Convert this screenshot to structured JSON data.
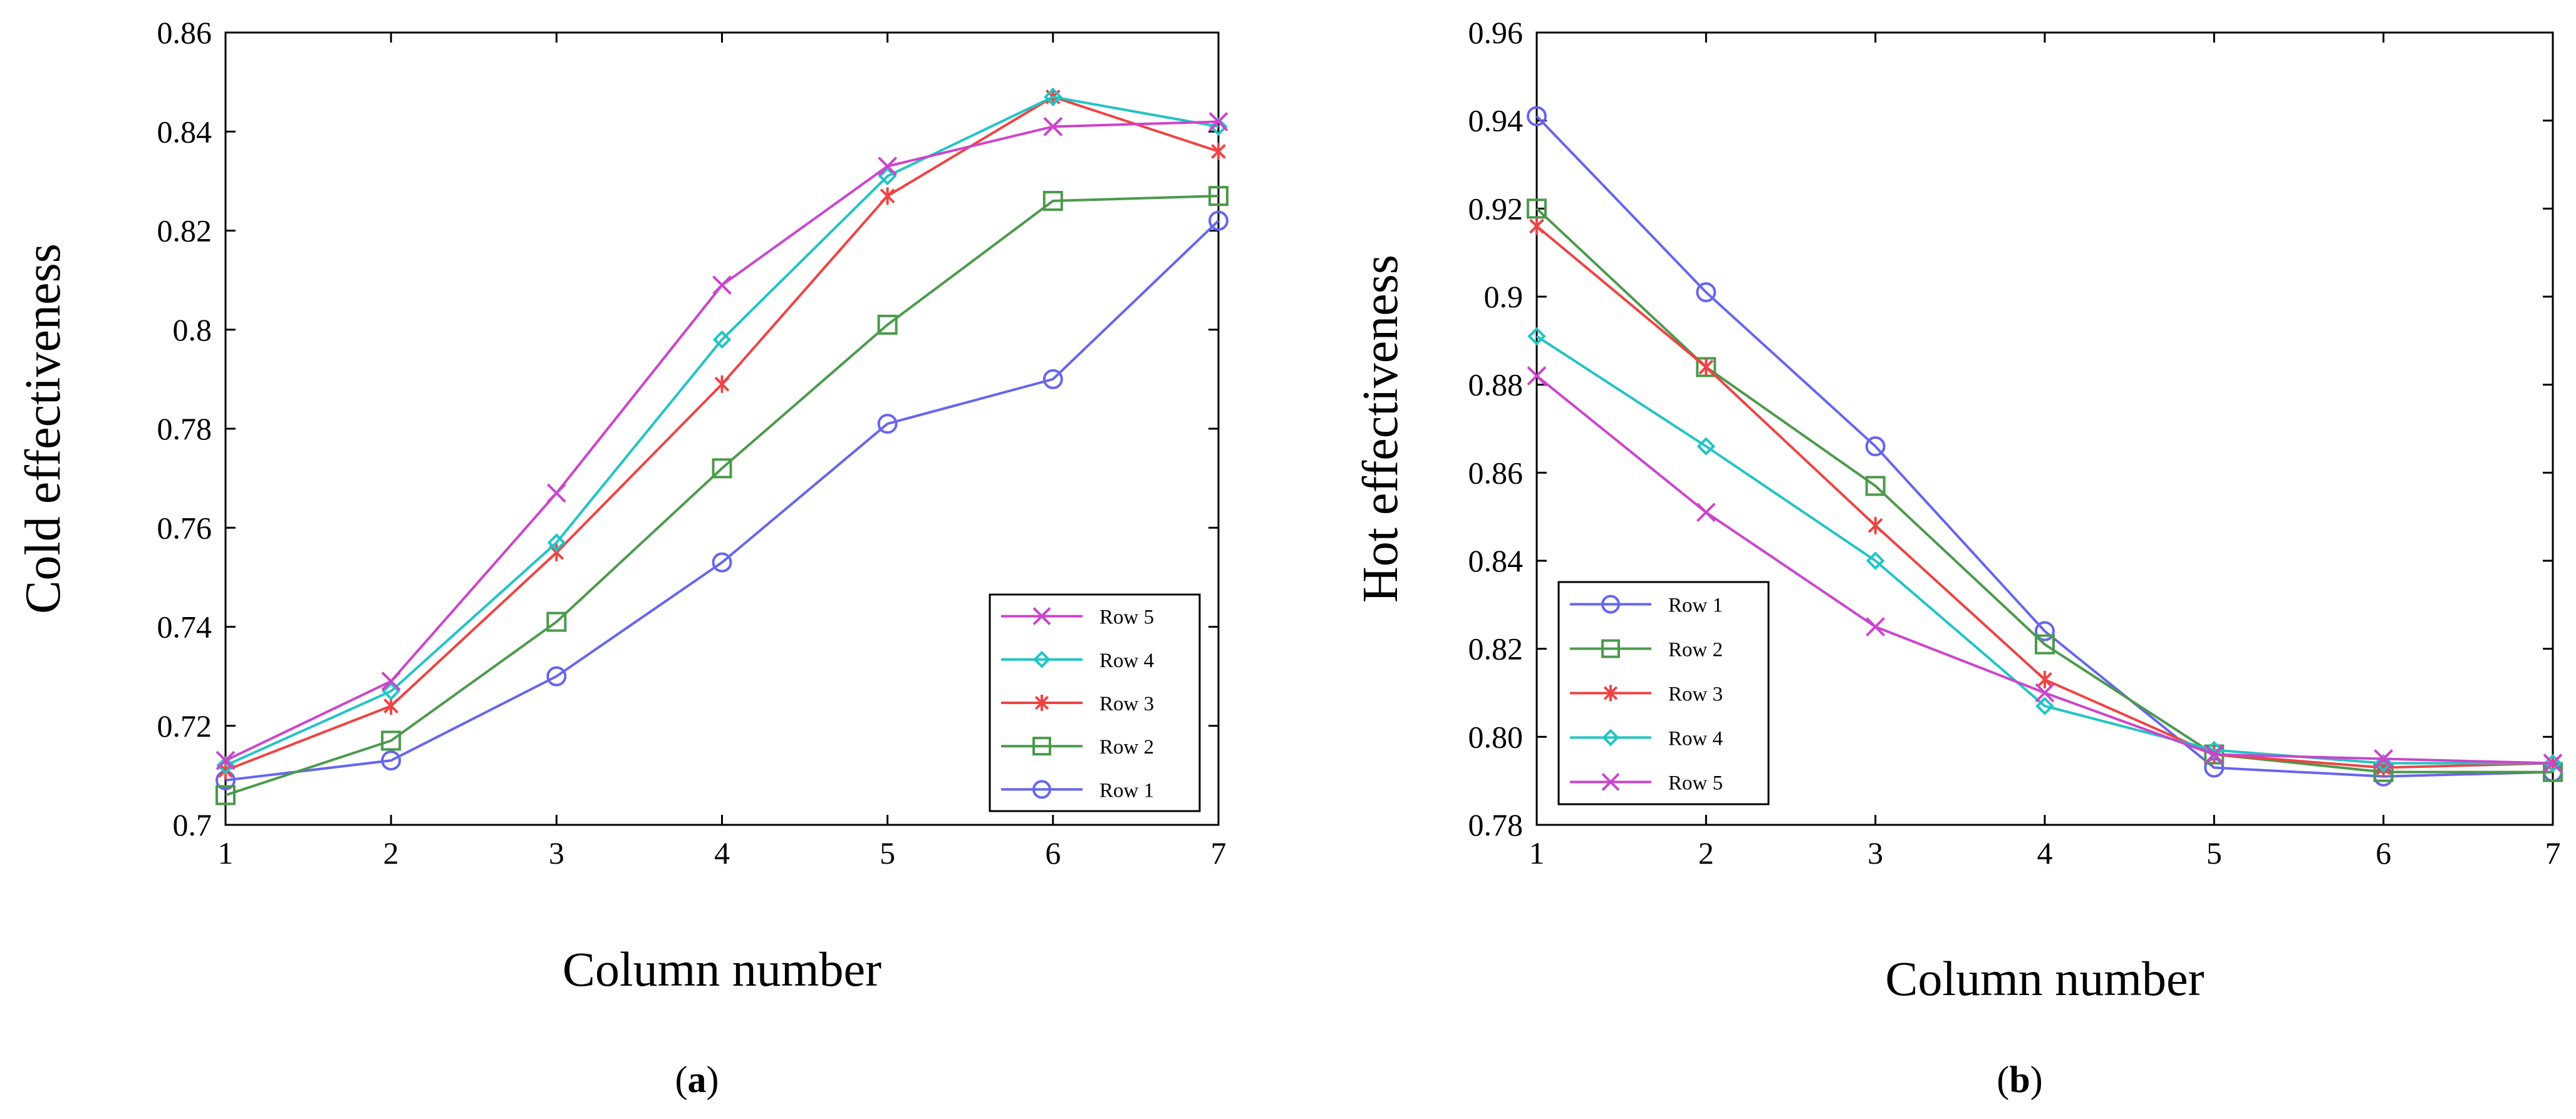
{
  "chart_data": [
    {
      "id": "a",
      "type": "line",
      "caption": "a",
      "title": "",
      "xlabel": "Column number",
      "ylabel": "Cold effectiveness",
      "x": [
        1,
        2,
        3,
        4,
        5,
        6,
        7
      ],
      "xlim": [
        1,
        7
      ],
      "ylim": [
        0.7,
        0.86
      ],
      "xticks": [
        "1",
        "2",
        "3",
        "4",
        "5",
        "6",
        "7"
      ],
      "yticks": [
        "0.7",
        "0.72",
        "0.74",
        "0.76",
        "0.78",
        "0.8",
        "0.82",
        "0.84",
        "0.86"
      ],
      "legend_position": "bottom-right",
      "legend_order": [
        "Row 5",
        "Row 4",
        "Row 3",
        "Row 2",
        "Row 1"
      ],
      "series": [
        {
          "name": "Row 1",
          "color": "#6666ee",
          "marker": "circle",
          "values": [
            0.709,
            0.713,
            0.73,
            0.753,
            0.781,
            0.79,
            0.822
          ]
        },
        {
          "name": "Row 2",
          "color": "#4b9a4b",
          "marker": "square",
          "values": [
            0.706,
            0.717,
            0.741,
            0.772,
            0.801,
            0.826,
            0.827
          ]
        },
        {
          "name": "Row 3",
          "color": "#ee4444",
          "marker": "asterisk",
          "values": [
            0.711,
            0.724,
            0.755,
            0.789,
            0.827,
            0.847,
            0.836
          ]
        },
        {
          "name": "Row 4",
          "color": "#22c4c4",
          "marker": "diamond",
          "values": [
            0.712,
            0.727,
            0.757,
            0.798,
            0.831,
            0.847,
            0.841
          ]
        },
        {
          "name": "Row 5",
          "color": "#cc44cc",
          "marker": "x",
          "values": [
            0.713,
            0.729,
            0.767,
            0.809,
            0.833,
            0.841,
            0.842
          ]
        }
      ]
    },
    {
      "id": "b",
      "type": "line",
      "caption": "b",
      "title": "",
      "xlabel": "Column number",
      "ylabel": "Hot effectiveness",
      "x": [
        1,
        2,
        3,
        4,
        5,
        6,
        7
      ],
      "xlim": [
        1,
        7
      ],
      "ylim": [
        0.78,
        0.96
      ],
      "xticks": [
        "1",
        "2",
        "3",
        "4",
        "5",
        "6",
        "7"
      ],
      "yticks": [
        "0.78",
        "0.80",
        "0.82",
        "0.84",
        "0.86",
        "0.88",
        "0.9",
        "0.92",
        "0.94",
        "0.96"
      ],
      "legend_position": "bottom-left",
      "legend_order": [
        "Row 1",
        "Row 2",
        "Row 3",
        "Row 4",
        "Row 5"
      ],
      "series": [
        {
          "name": "Row 1",
          "color": "#6666ee",
          "marker": "circle",
          "values": [
            0.941,
            0.901,
            0.866,
            0.824,
            0.793,
            0.791,
            0.792
          ]
        },
        {
          "name": "Row 2",
          "color": "#4b9a4b",
          "marker": "square",
          "values": [
            0.92,
            0.884,
            0.857,
            0.821,
            0.796,
            0.792,
            0.792
          ]
        },
        {
          "name": "Row 3",
          "color": "#ee4444",
          "marker": "asterisk",
          "values": [
            0.916,
            0.884,
            0.848,
            0.813,
            0.796,
            0.793,
            0.794
          ]
        },
        {
          "name": "Row 4",
          "color": "#22c4c4",
          "marker": "diamond",
          "values": [
            0.891,
            0.866,
            0.84,
            0.807,
            0.797,
            0.794,
            0.794
          ]
        },
        {
          "name": "Row 5",
          "color": "#cc44cc",
          "marker": "x",
          "values": [
            0.882,
            0.851,
            0.825,
            0.81,
            0.796,
            0.795,
            0.794
          ]
        }
      ]
    }
  ]
}
